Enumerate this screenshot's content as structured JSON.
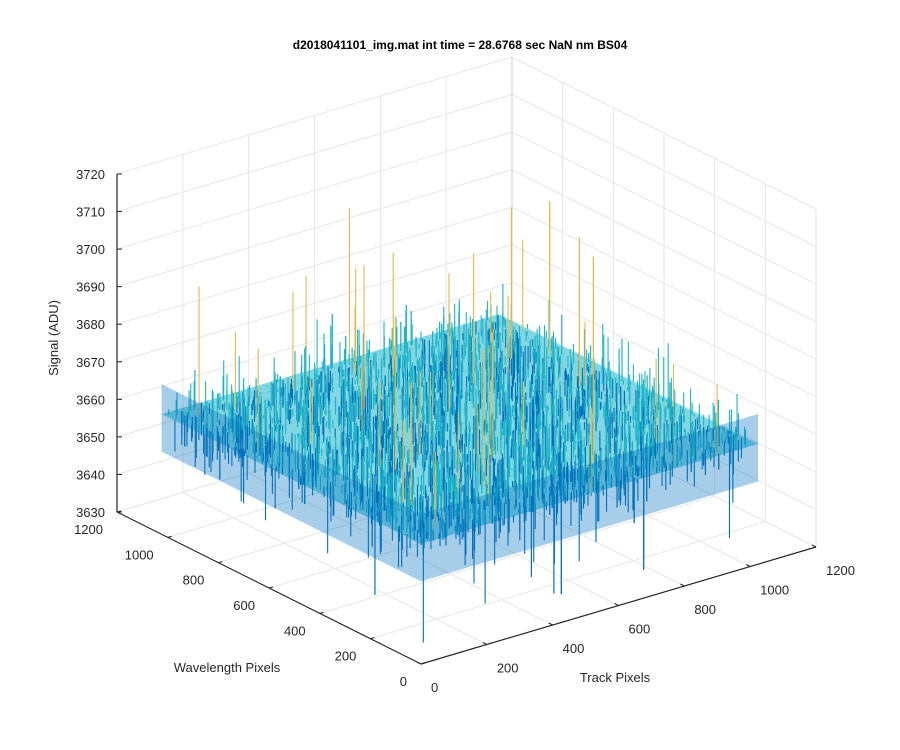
{
  "chart_data": {
    "type": "surface",
    "title": "d2018041101_img.mat int time = 28.6768 sec  NaN nm BS04",
    "xlabel": "Track Pixels",
    "ylabel": "Wavelength Pixels",
    "zlabel": "Signal (ADU)",
    "xlim": [
      0,
      1200
    ],
    "ylim": [
      0,
      1200
    ],
    "zlim": [
      3630,
      3720
    ],
    "x_ticks": [
      "0",
      "200",
      "400",
      "600",
      "800",
      "1000",
      "1200"
    ],
    "y_ticks": [
      "0",
      "200",
      "400",
      "600",
      "800",
      "1000",
      "1200"
    ],
    "z_ticks": [
      "3630",
      "3640",
      "3650",
      "3660",
      "3670",
      "3680",
      "3690",
      "3700",
      "3710",
      "3720"
    ],
    "data_extent": {
      "x": [
        0,
        1024
      ],
      "y": [
        0,
        1024
      ]
    },
    "signal_summary": {
      "mean": 3662,
      "typical_min": 3645,
      "typical_max": 3690,
      "min_spike": 3635,
      "max_spike": 3712
    },
    "grid": true,
    "colormap": "parula",
    "colors": {
      "low": "#0072BD",
      "mid": "#1CB4C8",
      "high": "#E1B94A"
    }
  }
}
